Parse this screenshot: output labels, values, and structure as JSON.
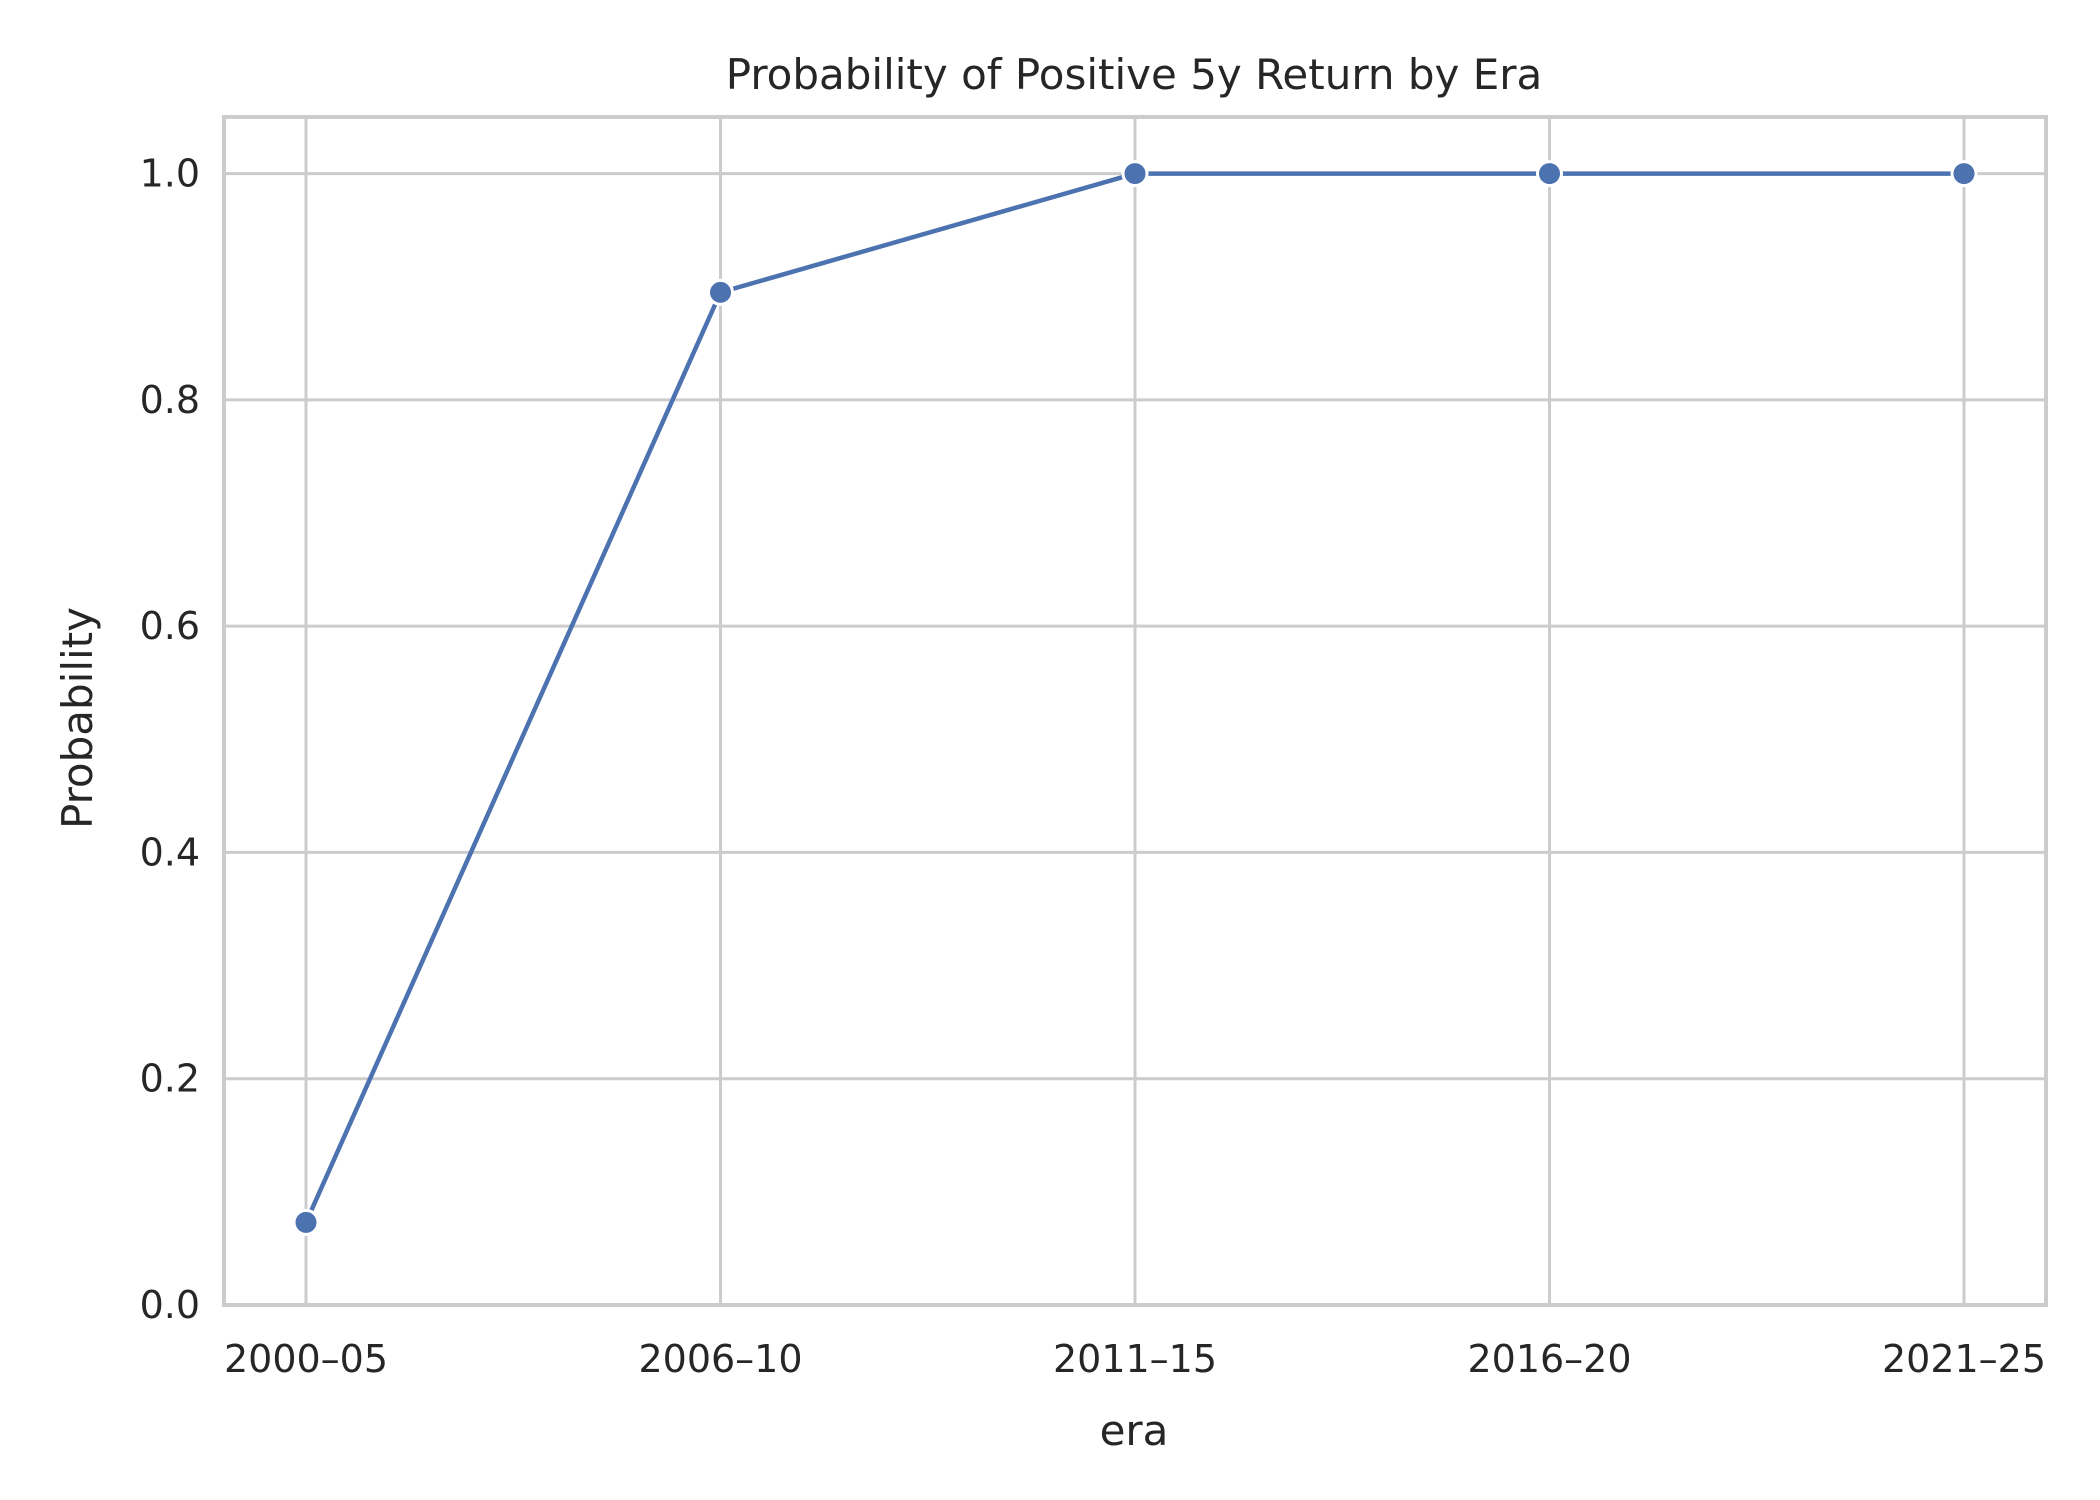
{
  "chart_data": {
    "type": "line",
    "title": "Probability of Positive 5y Return by Era",
    "xlabel": "era",
    "ylabel": "Probability",
    "categories": [
      "2000–05",
      "2006–10",
      "2011–15",
      "2016–20",
      "2021–25"
    ],
    "series": [
      {
        "values": [
          0.073,
          0.895,
          1.0,
          1.0,
          1.0
        ],
        "color": "#4c72b0"
      }
    ],
    "ylim": [
      0,
      1.05
    ],
    "yticks": [
      0.0,
      0.2,
      0.4,
      0.6,
      0.8,
      1.0
    ],
    "ytick_labels": [
      "0.0",
      "0.2",
      "0.4",
      "0.6",
      "0.8",
      "1.0"
    ],
    "grid": true,
    "legend": "none",
    "style": {
      "background": "#ffffff",
      "grid_color": "#cccccc",
      "text_color": "#262626"
    }
  }
}
